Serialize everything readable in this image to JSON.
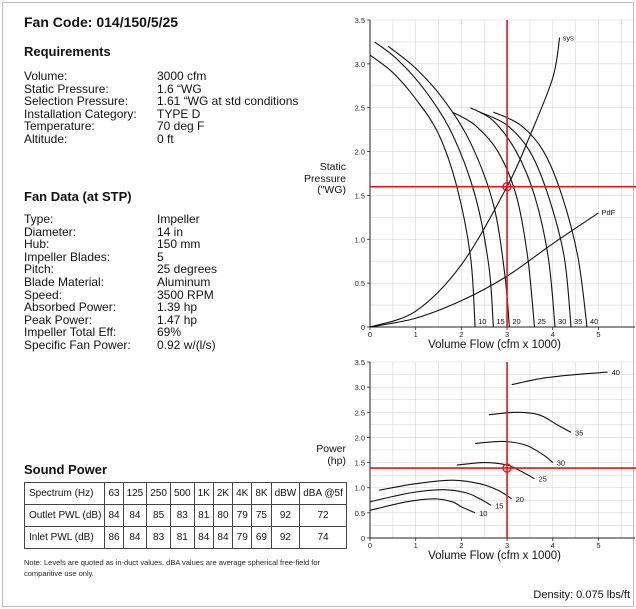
{
  "fan_code": "Fan Code: 014/150/5/25",
  "requirements": {
    "title": "Requirements",
    "rows": [
      {
        "label": "Volume:",
        "value": "3000 cfm"
      },
      {
        "label": "Static Pressure:",
        "value": "1.6 “WG"
      },
      {
        "label": "Selection Pressure:",
        "value": "1.61 “WG at std conditions"
      },
      {
        "label": "Installation Category:",
        "value": "TYPE D"
      },
      {
        "label": "Temperature:",
        "value": "70 deg F"
      },
      {
        "label": "Altitude:",
        "value": "0 ft"
      }
    ]
  },
  "fan_data": {
    "title": "Fan Data (at STP)",
    "rows": [
      {
        "label": "Type:",
        "value": "Impeller"
      },
      {
        "label": "Diameter:",
        "value": "14 in"
      },
      {
        "label": "Hub:",
        "value": "150 mm"
      },
      {
        "label": "Impeller Blades:",
        "value": "5"
      },
      {
        "label": "Pitch:",
        "value": "25 degrees"
      },
      {
        "label": "Blade Material:",
        "value": "Aluminum"
      },
      {
        "label": "Speed:",
        "value": "3500 RPM"
      },
      {
        "label": "Absorbed Power:",
        "value": "1.39 hp"
      },
      {
        "label": "Peak Power:",
        "value": "1.47 hp"
      },
      {
        "label": "Impeller Total Eff:",
        "value": "69%"
      },
      {
        "label": "Specific Fan Power:",
        "value": "0.92 w/(l/s)"
      }
    ]
  },
  "sound_power": {
    "title": "Sound Power",
    "header": [
      "Spectrum (Hz)",
      "63",
      "125",
      "250",
      "500",
      "1K",
      "2K",
      "4K",
      "8K",
      "dBW",
      "dBA @5f"
    ],
    "rows": [
      [
        "Outlet PWL (dB)",
        "84",
        "84",
        "85",
        "83",
        "81",
        "80",
        "79",
        "75",
        "92",
        "72"
      ],
      [
        "Inlet PWL (dB)",
        "86",
        "84",
        "83",
        "81",
        "84",
        "84",
        "79",
        "69",
        "92",
        "74"
      ]
    ],
    "note": "Note: Levels are quoted as in-duct values. dBA values are average spherical free-field for comparitive use only."
  },
  "density": "Density: 0.075 lbs/ft",
  "chart_data": [
    {
      "type": "line",
      "ylabel": "Static Pressure (\"WG)",
      "ylabel_lines": [
        "Static",
        "Pressure",
        "(\"WG)"
      ],
      "xlabel": "Volume Flow (cfm x 1000)",
      "xlim": [
        0,
        5.8
      ],
      "ylim": [
        0,
        3.5
      ],
      "x_ticks": [
        "0",
        "1",
        "2",
        "3",
        "4",
        "5"
      ],
      "y_ticks": [
        "0",
        "0.5",
        "1.0",
        "1.5",
        "2.0",
        "2.5",
        "3.0",
        "3.5"
      ],
      "grid": true,
      "operating_point": {
        "x": 3.0,
        "y": 1.6
      },
      "series": [
        {
          "name": "10",
          "points": [
            [
              0.0,
              3.1
            ],
            [
              0.5,
              2.9
            ],
            [
              1.0,
              2.6
            ],
            [
              1.5,
              2.2
            ],
            [
              1.9,
              1.6
            ],
            [
              2.2,
              0.8
            ],
            [
              2.3,
              0.0
            ]
          ]
        },
        {
          "name": "15",
          "points": [
            [
              0.1,
              3.25
            ],
            [
              0.6,
              3.05
            ],
            [
              1.2,
              2.7
            ],
            [
              1.8,
              2.2
            ],
            [
              2.3,
              1.5
            ],
            [
              2.6,
              0.7
            ],
            [
              2.7,
              0.0
            ]
          ]
        },
        {
          "name": "20",
          "points": [
            [
              0.4,
              3.2
            ],
            [
              1.0,
              2.95
            ],
            [
              1.6,
              2.6
            ],
            [
              2.2,
              2.1
            ],
            [
              2.7,
              1.4
            ],
            [
              2.95,
              0.6
            ],
            [
              3.05,
              0.0
            ]
          ]
        },
        {
          "name": "25",
          "points": [
            [
              1.8,
              2.45
            ],
            [
              2.3,
              2.3
            ],
            [
              2.8,
              2.0
            ],
            [
              3.2,
              1.5
            ],
            [
              3.45,
              0.8
            ],
            [
              3.6,
              0.0
            ]
          ]
        },
        {
          "name": "30",
          "points": [
            [
              2.2,
              2.5
            ],
            [
              2.7,
              2.35
            ],
            [
              3.2,
              2.0
            ],
            [
              3.6,
              1.5
            ],
            [
              3.9,
              0.8
            ],
            [
              4.05,
              0.0
            ]
          ]
        },
        {
          "name": "35",
          "points": [
            [
              2.4,
              2.45
            ],
            [
              3.0,
              2.3
            ],
            [
              3.5,
              2.0
            ],
            [
              3.9,
              1.5
            ],
            [
              4.25,
              0.8
            ],
            [
              4.4,
              0.0
            ]
          ]
        },
        {
          "name": "40",
          "points": [
            [
              2.7,
              2.45
            ],
            [
              3.3,
              2.3
            ],
            [
              3.8,
              2.0
            ],
            [
              4.2,
              1.5
            ],
            [
              4.55,
              0.8
            ],
            [
              4.75,
              0.0
            ]
          ]
        },
        {
          "name": "sys",
          "points": [
            [
              0.0,
              0.0
            ],
            [
              1.0,
              0.18
            ],
            [
              2.0,
              0.71
            ],
            [
              3.0,
              1.6
            ],
            [
              3.5,
              2.18
            ],
            [
              4.0,
              2.84
            ],
            [
              4.15,
              3.3
            ]
          ]
        },
        {
          "name": "PdF",
          "points": [
            [
              0.0,
              0.0
            ],
            [
              1.0,
              0.1
            ],
            [
              2.0,
              0.3
            ],
            [
              3.0,
              0.58
            ],
            [
              4.0,
              0.95
            ],
            [
              5.0,
              1.3
            ]
          ]
        }
      ]
    },
    {
      "type": "line",
      "ylabel": "Power (hp)",
      "ylabel_lines": [
        "Power",
        "(hp)"
      ],
      "xlabel": "Volume Flow (cfm x 1000)",
      "xlim": [
        0,
        5.8
      ],
      "ylim": [
        0,
        3.5
      ],
      "x_ticks": [
        "0",
        "1",
        "2",
        "3",
        "4",
        "5"
      ],
      "y_ticks": [
        "0",
        "0.5",
        "1.0",
        "1.5",
        "2.0",
        "2.5",
        "3.0",
        "3.5"
      ],
      "grid": true,
      "operating_point": {
        "x": 3.0,
        "y": 1.39
      },
      "series": [
        {
          "name": "10",
          "points": [
            [
              0.0,
              0.55
            ],
            [
              0.8,
              0.72
            ],
            [
              1.4,
              0.78
            ],
            [
              1.8,
              0.72
            ],
            [
              2.0,
              0.62
            ],
            [
              2.3,
              0.5
            ]
          ]
        },
        {
          "name": "15",
          "points": [
            [
              0.0,
              0.72
            ],
            [
              0.9,
              0.9
            ],
            [
              1.6,
              0.96
            ],
            [
              2.1,
              0.9
            ],
            [
              2.4,
              0.78
            ],
            [
              2.65,
              0.65
            ]
          ]
        },
        {
          "name": "20",
          "points": [
            [
              0.2,
              0.95
            ],
            [
              1.0,
              1.08
            ],
            [
              1.8,
              1.15
            ],
            [
              2.4,
              1.08
            ],
            [
              2.8,
              0.95
            ],
            [
              3.1,
              0.78
            ]
          ]
        },
        {
          "name": "25",
          "points": [
            [
              1.9,
              1.45
            ],
            [
              2.5,
              1.5
            ],
            [
              3.0,
              1.45
            ],
            [
              3.3,
              1.33
            ],
            [
              3.6,
              1.18
            ]
          ]
        },
        {
          "name": "30",
          "points": [
            [
              2.3,
              1.88
            ],
            [
              2.9,
              1.92
            ],
            [
              3.4,
              1.85
            ],
            [
              3.8,
              1.65
            ],
            [
              4.0,
              1.5
            ]
          ]
        },
        {
          "name": "35",
          "points": [
            [
              2.6,
              2.45
            ],
            [
              3.2,
              2.5
            ],
            [
              3.7,
              2.45
            ],
            [
              4.1,
              2.25
            ],
            [
              4.4,
              2.1
            ]
          ]
        },
        {
          "name": "40",
          "points": [
            [
              3.1,
              3.05
            ],
            [
              3.8,
              3.18
            ],
            [
              4.5,
              3.25
            ],
            [
              5.2,
              3.3
            ]
          ]
        }
      ]
    }
  ]
}
